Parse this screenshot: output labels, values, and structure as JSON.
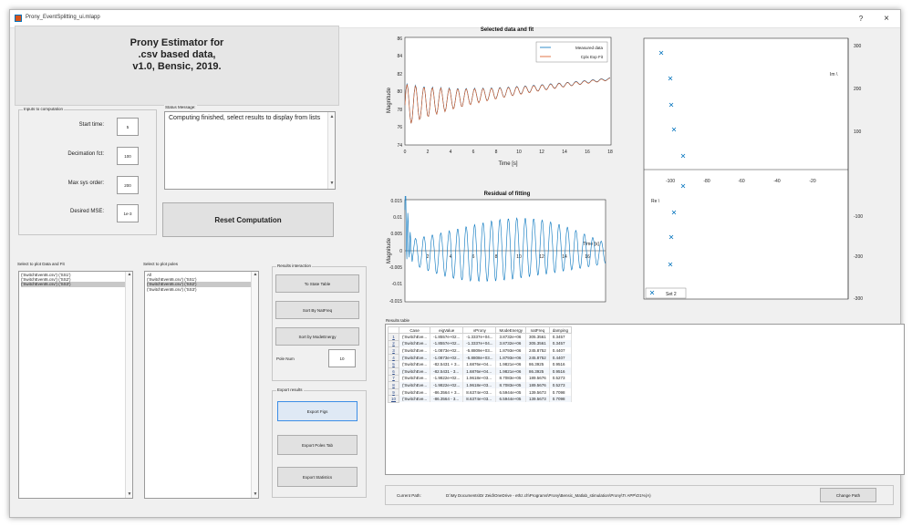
{
  "window": {
    "title": "Prony_EventSplitting_ui.mlapp",
    "help_glyph": "?",
    "close_glyph": "×"
  },
  "heading": {
    "line1": "Prony Estimator for",
    "line2": ".csv based data,",
    "line3": "v1.0, Bensic, 2019."
  },
  "inputs": {
    "panel_title": "Inputs to computation",
    "fields": [
      {
        "label": "Start time:",
        "value": "5"
      },
      {
        "label": "Decimation fct:",
        "value": "100"
      },
      {
        "label": "Max sys order:",
        "value": "200"
      },
      {
        "label": "Desired MSE:",
        "value": "1e-3"
      }
    ]
  },
  "status": {
    "title": "Status Message:",
    "text": "Computing finished, select results to display from lists"
  },
  "reset_button": "Reset Computation",
  "data_list": {
    "title": "Select to plot Data and Fit",
    "items": [
      {
        "label": "('SwitchEvent6.csv') ('SS1')",
        "selected": false
      },
      {
        "label": "('SwitchEvent6.csv') ('SS2')",
        "selected": false
      },
      {
        "label": "('SwitchEvent6.csv') ('SS3')",
        "selected": true
      }
    ]
  },
  "poles_list": {
    "title": "Select to plot poles",
    "items": [
      {
        "label": "All",
        "selected": false
      },
      {
        "label": "('SwitchEvent6.csv') ('SS1')",
        "selected": false
      },
      {
        "label": "('SwitchEvent6.csv') ('SS2')",
        "selected": true
      },
      {
        "label": "('SwitchEvent6.csv') ('SS3')",
        "selected": false
      }
    ]
  },
  "results_interaction": {
    "title": "Results interaction",
    "to_state_table": "To State Table",
    "sort_by_natfreq": "Sort By NatFreq",
    "sort_by_modeenergy": "Sort by ModeEnergy",
    "pole_num_label": "Pole Num",
    "pole_num_value": "10"
  },
  "export": {
    "title": "Export results",
    "export_figs": "Export Figs",
    "export_poles_tab": "Export Poles Tab",
    "export_statistics": "Export Statistics"
  },
  "plot1": {
    "title": "Selected data and fit",
    "ylabel": "Magnitude",
    "xlabel": "Time [s]",
    "xticks": [
      "0",
      "2",
      "4",
      "6",
      "8",
      "10",
      "12",
      "14",
      "16",
      "18"
    ],
    "yticks": [
      "86",
      "84",
      "82",
      "80",
      "78",
      "76",
      "74"
    ],
    "legend": [
      "Measured data",
      "Cplx Exp Fit"
    ]
  },
  "plot2": {
    "title": "Residual of fitting",
    "ylabel": "Magnitude",
    "xlabel": "Time [s]",
    "xticks": [
      "2",
      "4",
      "6",
      "8",
      "10",
      "12",
      "14",
      "16"
    ],
    "yticks": [
      "0.015",
      "0.01",
      "0.005",
      "0",
      "-0.005",
      "-0.01",
      "-0.015"
    ]
  },
  "plot3": {
    "im_label": "Im \\",
    "re_label": "Re \\",
    "yticks": [
      "300",
      "200",
      "100",
      "-100",
      "-200",
      "-300"
    ],
    "xticks": [
      "-100",
      "-80",
      "-60",
      "-40",
      "-20"
    ],
    "legend": "Set 2"
  },
  "colors": {
    "measured": "#0072bd",
    "fit": "#d95319",
    "pole_marker": "#0072bd"
  },
  "results": {
    "title": "Results table",
    "columns": [
      "Case",
      "eigValue",
      "vProny",
      "ModeEnergy",
      "natFreq",
      "damping"
    ],
    "rows": [
      [
        "('SwitchEve...",
        "-1.8557e+02...",
        "-1.3337e+04...",
        "3.8732e+06",
        "305.3561",
        "0.3457"
      ],
      [
        "('SwitchEve...",
        "-1.8557e+02...",
        "-1.3337e+04...",
        "3.8732e+06",
        "305.3561",
        "0.3457"
      ],
      [
        "('SwitchEve...",
        "-1.0873e+02...",
        "-5.8809e+03...",
        "1.8793e+06",
        "245.8752",
        "0.4407"
      ],
      [
        "('SwitchEve...",
        "-1.0873e+02...",
        "-5.8808e+03...",
        "1.8793e+06",
        "245.8752",
        "0.4407"
      ],
      [
        "('SwitchEve...",
        "-82.5431 + 3...",
        "1.6876e+04...",
        "1.9821e+06",
        "86.3925",
        "0.9516"
      ],
      [
        "('SwitchEve...",
        "-82.5431 - 3...",
        "1.6876e+04...",
        "1.9821e+06",
        "86.3925",
        "0.9516"
      ],
      [
        "('SwitchEve...",
        "-1.9822e+02...",
        "1.9618e+03...",
        "8.7083e+05",
        "189.5676",
        "0.5273"
      ],
      [
        "('SwitchEve...",
        "-1.9822e+02...",
        "1.9618e+03...",
        "8.7083e+05",
        "189.5676",
        "0.5273"
      ],
      [
        "('SwitchEve...",
        "-86.3564 + 3...",
        "8.6374e+03...",
        "6.5944e+05",
        "139.5673",
        "0.7098"
      ],
      [
        "('SwitchEve...",
        "-86.3564 - 3...",
        "8.6374e+03...",
        "6.5944e+05",
        "139.5673",
        "0.7098"
      ]
    ]
  },
  "path": {
    "label": "Current Path:",
    "value": "D:\\My Documents\\Dr Zeid\\OneDrive - ethz.ch\\Programs\\Prony\\Bensic_Matlab_stimulation\\Prony\\Tr APP\\O1%(A)",
    "change_button": "Change Path"
  }
}
